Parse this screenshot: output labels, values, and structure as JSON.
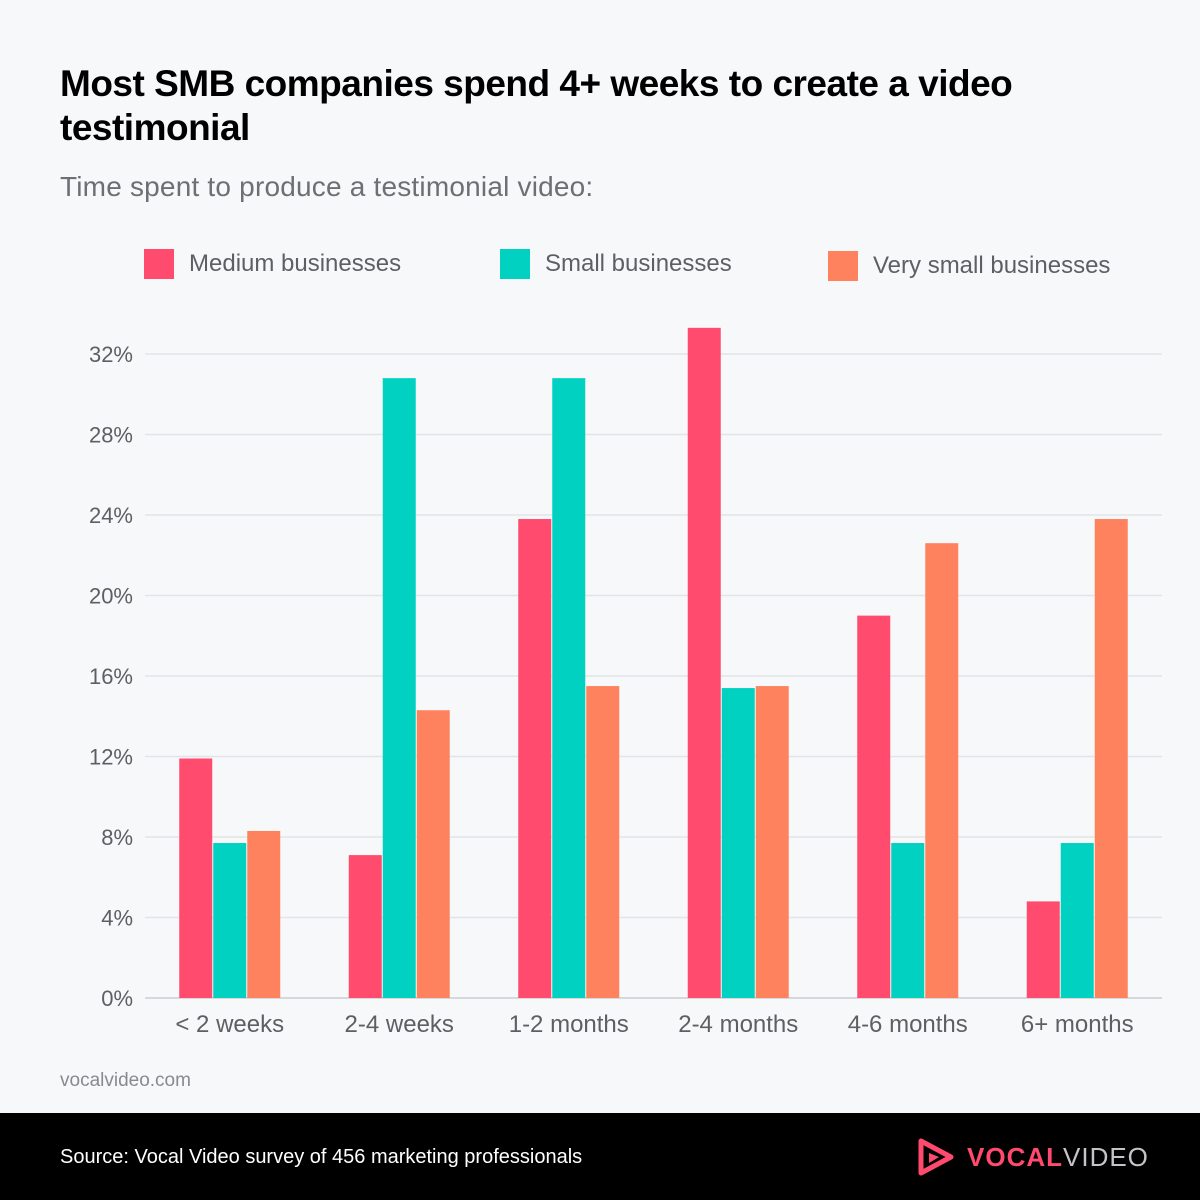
{
  "title": "Most SMB companies spend 4+ weeks to create a video testimonial",
  "subtitle": "Time spent to produce a testimonial video:",
  "legend": [
    {
      "label": "Medium businesses",
      "color": "#ff4b6e"
    },
    {
      "label": "Small businesses",
      "color": "#00d1c1"
    },
    {
      "label": "Very small businesses",
      "color": "#ff825e"
    }
  ],
  "chart_data": {
    "type": "bar",
    "categories": [
      "< 2 weeks",
      "2-4 weeks",
      "1-2 months",
      "2-4 months",
      "4-6 months",
      "6+ months"
    ],
    "series": [
      {
        "name": "Medium businesses",
        "color": "#ff4b6e",
        "values": [
          11.9,
          7.1,
          23.8,
          33.3,
          19.0,
          4.8
        ]
      },
      {
        "name": "Small businesses",
        "color": "#00d1c1",
        "values": [
          7.7,
          30.8,
          30.8,
          15.4,
          7.7,
          7.7
        ]
      },
      {
        "name": "Very small businesses",
        "color": "#ff825e",
        "values": [
          8.3,
          14.3,
          15.5,
          15.5,
          22.6,
          23.8
        ]
      }
    ],
    "yticks": [
      "0%",
      "4%",
      "8%",
      "12%",
      "16%",
      "20%",
      "24%",
      "28%",
      "32%"
    ],
    "ylim": [
      0,
      32
    ],
    "grid": true,
    "legend_position": "top"
  },
  "site": "vocalvideo.com",
  "source": "Source: Vocal Video survey of 456 marketing professionals",
  "brand": {
    "part1": "VOCAL",
    "part2": "VIDEO",
    "icon": "play-triangle-icon"
  }
}
